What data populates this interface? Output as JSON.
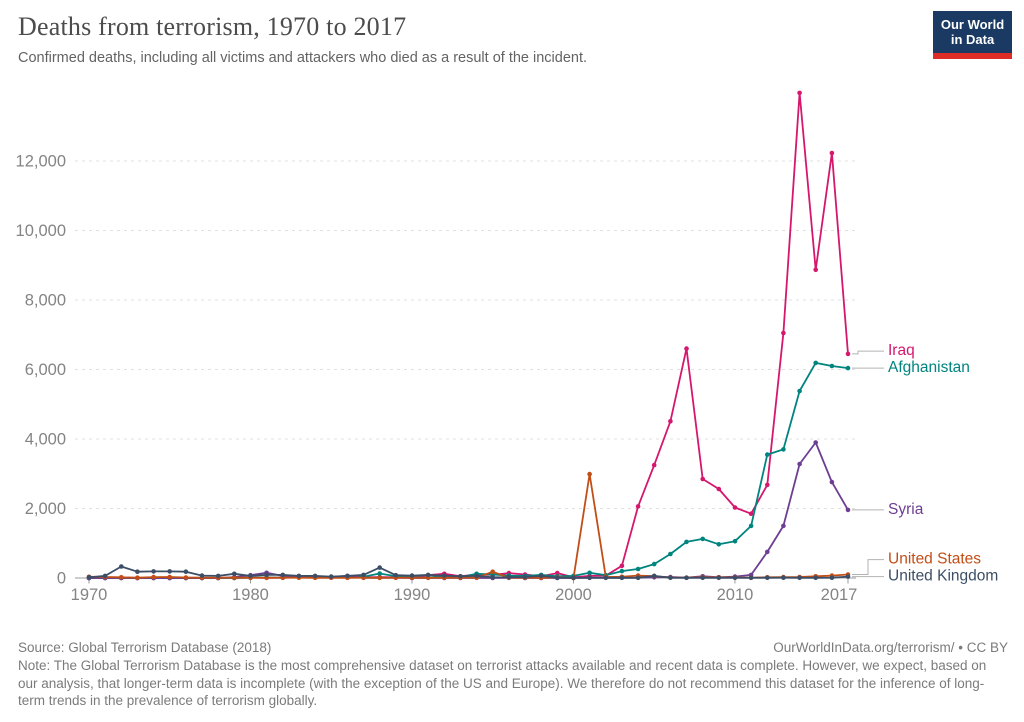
{
  "header": {
    "title": "Deaths from terrorism, 1970 to 2017",
    "subtitle": "Confirmed deaths, including all victims and attackers who died as a result of the incident.",
    "logo": {
      "line1": "Our World",
      "line2": "in Data",
      "bg_color": "#1A3A64",
      "accent_color": "#DE2D26"
    }
  },
  "chart_data": {
    "type": "line",
    "title": "Deaths from terrorism, 1970 to 2017",
    "xlabel": "",
    "ylabel": "",
    "xlim": [
      1969,
      2018
    ],
    "ylim": [
      0,
      14200
    ],
    "grid": "horizontal-dashed",
    "legend_position": "right-of-line-ends",
    "x_ticks": [
      1970,
      1980,
      1990,
      2000,
      2010,
      2017
    ],
    "y_ticks": [
      0,
      2000,
      4000,
      6000,
      8000,
      10000,
      12000
    ],
    "y_tick_labels": [
      "0",
      "2,000",
      "4,000",
      "6,000",
      "8,000",
      "10,000",
      "12,000"
    ],
    "x": [
      1970,
      1971,
      1972,
      1973,
      1974,
      1975,
      1976,
      1977,
      1978,
      1979,
      1980,
      1981,
      1982,
      1983,
      1984,
      1985,
      1986,
      1987,
      1988,
      1989,
      1990,
      1991,
      1992,
      1993,
      1994,
      1995,
      1996,
      1997,
      1998,
      1999,
      2000,
      2001,
      2002,
      2003,
      2004,
      2005,
      2006,
      2007,
      2008,
      2009,
      2010,
      2011,
      2012,
      2013,
      2014,
      2015,
      2016,
      2017
    ],
    "series": [
      {
        "name": "Iraq",
        "color": "#D5176E",
        "values": [
          0,
          0,
          0,
          0,
          0,
          0,
          0,
          0,
          0,
          0,
          10,
          5,
          10,
          15,
          10,
          15,
          10,
          20,
          25,
          20,
          30,
          80,
          120,
          50,
          100,
          90,
          140,
          100,
          50,
          140,
          20,
          60,
          70,
          350,
          2060,
          3250,
          4510,
          6600,
          2850,
          2560,
          2030,
          1850,
          2680,
          7050,
          13960,
          8870,
          12230,
          6450
        ]
      },
      {
        "name": "Afghanistan",
        "color": "#00847E",
        "values": [
          0,
          0,
          0,
          0,
          0,
          0,
          0,
          0,
          0,
          0,
          10,
          15,
          10,
          20,
          15,
          25,
          20,
          35,
          130,
          50,
          25,
          15,
          60,
          20,
          120,
          100,
          70,
          60,
          90,
          50,
          60,
          150,
          80,
          200,
          260,
          400,
          690,
          1040,
          1125,
          970,
          1060,
          1500,
          3550,
          3700,
          5380,
          6190,
          6100,
          6040
        ]
      },
      {
        "name": "Syria",
        "color": "#6D3E91",
        "values": [
          0,
          0,
          0,
          0,
          0,
          0,
          0,
          0,
          0,
          25,
          80,
          150,
          60,
          25,
          15,
          30,
          60,
          5,
          5,
          5,
          0,
          5,
          0,
          0,
          5,
          0,
          5,
          0,
          0,
          0,
          0,
          5,
          5,
          5,
          10,
          20,
          30,
          10,
          50,
          20,
          40,
          90,
          750,
          1500,
          3280,
          3900,
          2760,
          1960
        ]
      },
      {
        "name": "United States",
        "color": "#C24E17",
        "values": [
          35,
          30,
          20,
          10,
          25,
          30,
          15,
          10,
          10,
          10,
          10,
          5,
          10,
          10,
          5,
          5,
          5,
          10,
          5,
          10,
          10,
          5,
          10,
          10,
          10,
          180,
          5,
          10,
          5,
          20,
          0,
          2990,
          30,
          35,
          70,
          55,
          15,
          10,
          20,
          20,
          15,
          10,
          20,
          25,
          30,
          50,
          70,
          100
        ]
      },
      {
        "name": "United Kingdom",
        "color": "#3C4E66",
        "values": [
          20,
          60,
          330,
          180,
          190,
          190,
          180,
          70,
          60,
          120,
          60,
          90,
          90,
          60,
          60,
          40,
          60,
          90,
          300,
          80,
          70,
          90,
          70,
          50,
          60,
          20,
          20,
          30,
          60,
          10,
          5,
          10,
          5,
          5,
          5,
          60,
          5,
          5,
          5,
          5,
          5,
          5,
          5,
          10,
          5,
          5,
          10,
          40
        ]
      }
    ]
  },
  "footer": {
    "source": "Source: Global Terrorism Database (2018)",
    "credit": "OurWorldInData.org/terrorism/ • CC BY",
    "note": "Note: The Global Terrorism Database is the most comprehensive dataset on terrorist attacks available and recent data is complete. However, we expect, based on our analysis, that longer-term data is incomplete (with the exception of the US and Europe). We therefore do not recommend this dataset for the inference of long-term trends in the prevalence of terrorism globally."
  }
}
